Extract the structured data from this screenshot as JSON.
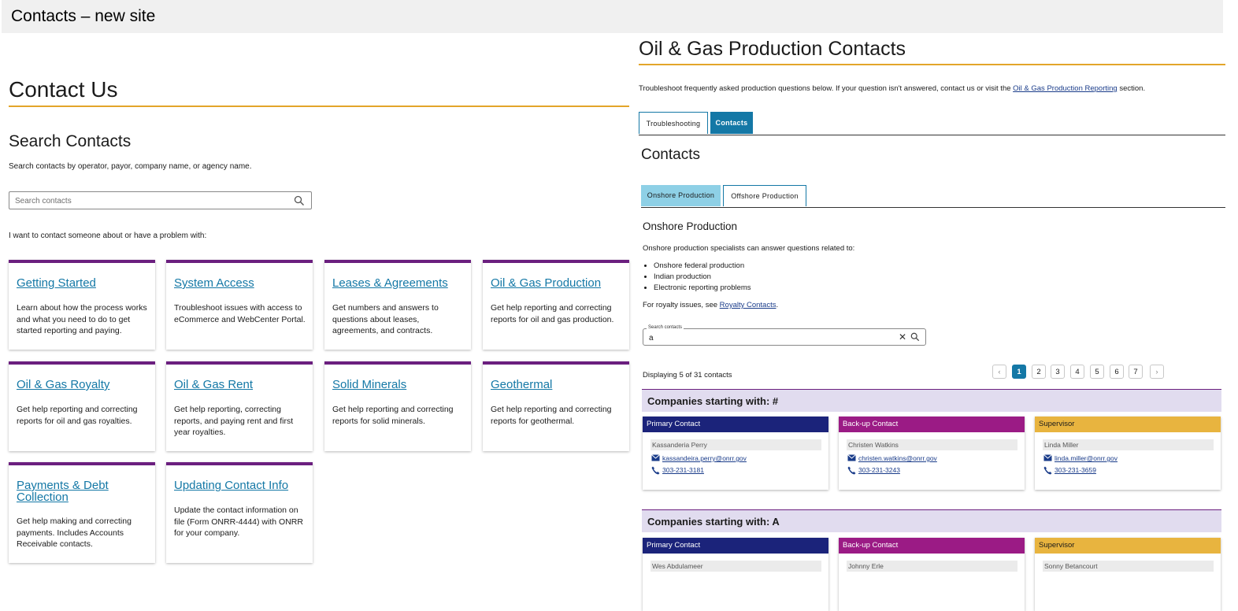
{
  "window": {
    "title": "Contacts – new site"
  },
  "left": {
    "heading": "Contact Us",
    "search_heading": "Search Contacts",
    "search_desc": "Search contacts by operator, payor, company name, or agency name.",
    "search_placeholder": "Search contacts",
    "prompt": "I want to contact someone about or have a problem with:",
    "cards": [
      {
        "title": "Getting Started",
        "body": "Learn about how the process works and what you need to do to get started reporting and paying."
      },
      {
        "title": "System Access",
        "body": "Troubleshoot issues with access to eCommerce and WebCenter Portal."
      },
      {
        "title": "Leases & Agreements",
        "body": "Get numbers and answers to questions about leases, agreements, and contracts."
      },
      {
        "title": "Oil & Gas Production",
        "body": "Get help reporting and correcting reports for oil and gas production."
      },
      {
        "title": "Oil & Gas Royalty",
        "body": "Get help reporting and correcting reports for oil and gas royalties."
      },
      {
        "title": "Oil & Gas Rent",
        "body": "Get help reporting, correcting reports, and paying rent and first year royalties."
      },
      {
        "title": "Solid Minerals",
        "body": "Get help reporting and correcting reports for solid minerals."
      },
      {
        "title": "Geothermal",
        "body": "Get help reporting and correcting reports for geothermal."
      },
      {
        "title": "Payments & Debt Collection",
        "body": "Get help making and correcting payments. Includes Accounts Receivable contacts."
      },
      {
        "title": "Updating Contact Info",
        "body": "Update the contact information on file (Form ONRR-4444) with ONRR for your company."
      }
    ]
  },
  "right": {
    "title": "Oil & Gas Production Contacts",
    "desc_before": "Troubleshoot frequently asked production questions below. If your question isn't answered, contact us or visit the ",
    "desc_link": "Oil & Gas Production Reporting",
    "desc_after": " section.",
    "tabs": [
      "Troubleshooting",
      "Contacts"
    ],
    "contacts_heading": "Contacts",
    "subtabs": [
      "Onshore Production",
      "Offshore Production"
    ],
    "section_title": "Onshore Production",
    "section_desc": "Onshore production specialists can answer questions related to:",
    "bullets": [
      "Onshore federal production",
      "Indian production",
      "Electronic reporting problems"
    ],
    "royalty_before": "For royalty issues, see ",
    "royalty_link": "Royalty Contacts",
    "royalty_after": ".",
    "search_label": "Search contacts",
    "search_value": "a",
    "displaying": "Displaying 5 of 31 contacts",
    "pages": [
      "1",
      "2",
      "3",
      "4",
      "5",
      "6",
      "7"
    ],
    "prev_glyph": "‹",
    "next_glyph": "›",
    "clear_glyph": "✕",
    "colors": {
      "primary": "#1b237a",
      "backup": "#9b1b85",
      "supervisor": "#e8b43f",
      "accent": "#1478a6",
      "rule": "#e3a52a"
    },
    "groups": [
      {
        "label": "Companies starting with: #",
        "contacts": [
          {
            "role": "Primary Contact",
            "name": "Kassanderia Perry",
            "email": "kassandeira.perry@onrr.gov",
            "phone": "303-231-3181"
          },
          {
            "role": "Back-up Contact",
            "name": "Christen Watkins",
            "email": "christen.watkins@onrr.gov",
            "phone": "303-231-3243"
          },
          {
            "role": "Supervisor",
            "name": "Linda Miller",
            "email": "linda.miller@onrr.gov",
            "phone": "303-231-3659"
          }
        ]
      },
      {
        "label": "Companies starting with: A",
        "contacts": [
          {
            "role": "Primary Contact",
            "name": "Wes Abdulameer"
          },
          {
            "role": "Back-up Contact",
            "name": "Johnny Erle"
          },
          {
            "role": "Supervisor",
            "name": "Sonny Betancourt"
          }
        ]
      }
    ]
  }
}
